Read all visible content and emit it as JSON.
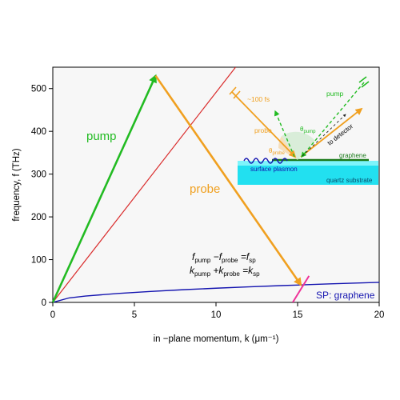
{
  "chart_data": {
    "type": "line",
    "xlabel": "in −plane momentum, k (μm⁻¹)",
    "ylabel": "frequency, f (THz)",
    "xlim": [
      0,
      20
    ],
    "ylim": [
      0,
      550
    ],
    "x_ticks": [
      "0",
      "5",
      "10",
      "15",
      "20"
    ],
    "y_ticks": [
      "0",
      "100",
      "200",
      "300",
      "400",
      "500"
    ],
    "grid": false,
    "light_line": {
      "x": [
        0,
        11.2
      ],
      "y": [
        0,
        550
      ],
      "color": "#d92b2b"
    },
    "sp_dispersion": {
      "name": "SP: graphene",
      "color": "#1515b0",
      "x": [
        0,
        1,
        2,
        4,
        6,
        8,
        10,
        12,
        14,
        15.2,
        17,
        20
      ],
      "y": [
        0,
        10.5,
        14.8,
        21,
        25.7,
        29.7,
        33.2,
        36.4,
        39.3,
        40.9,
        43.3,
        46.9
      ]
    },
    "pump_arrow": {
      "x": [
        0,
        6.3
      ],
      "y": [
        0,
        530
      ],
      "color": "#22bb22"
    },
    "probe_arrow": {
      "x": [
        6.3,
        15.2
      ],
      "y": [
        530,
        41
      ],
      "color": "#f0a020"
    },
    "sp_marker": {
      "x": [
        14.7,
        15.7
      ],
      "y": [
        0,
        62
      ],
      "color": "#ee3399"
    }
  },
  "labels": {
    "pump": "pump",
    "probe": "probe",
    "sp_graphene": "SP: graphene",
    "eq_freq_a": "f",
    "eq_freq_a_sub": "pump",
    "eq_freq_b": " −f",
    "eq_freq_b_sub": "probe",
    "eq_freq_c": " =f",
    "eq_freq_c_sub": "sp",
    "eq_mom_a": "k",
    "eq_mom_a_sub": "pump",
    "eq_mom_b": " +k",
    "eq_mom_b_sub": "probe",
    "eq_mom_c": " =k",
    "eq_mom_c_sub": "sp"
  },
  "inset": {
    "pulse": "~100 fs",
    "probe": "probe",
    "pump": "pump",
    "theta_pump": "θ",
    "theta_pump_sub": "pump",
    "theta_probe": "θ",
    "theta_probe_sub": "probe",
    "to_detector": "to detector",
    "graphene": "graphene",
    "surface_plasmon": "surface plasmon",
    "substrate": "quartz substrate"
  },
  "colors": {
    "pump": "#22bb22",
    "probe": "#f0a020",
    "light_line": "#d92b2b",
    "sp": "#1515b0",
    "substrate": "#22e0f0",
    "plot_bg": "#f7f7f7"
  }
}
